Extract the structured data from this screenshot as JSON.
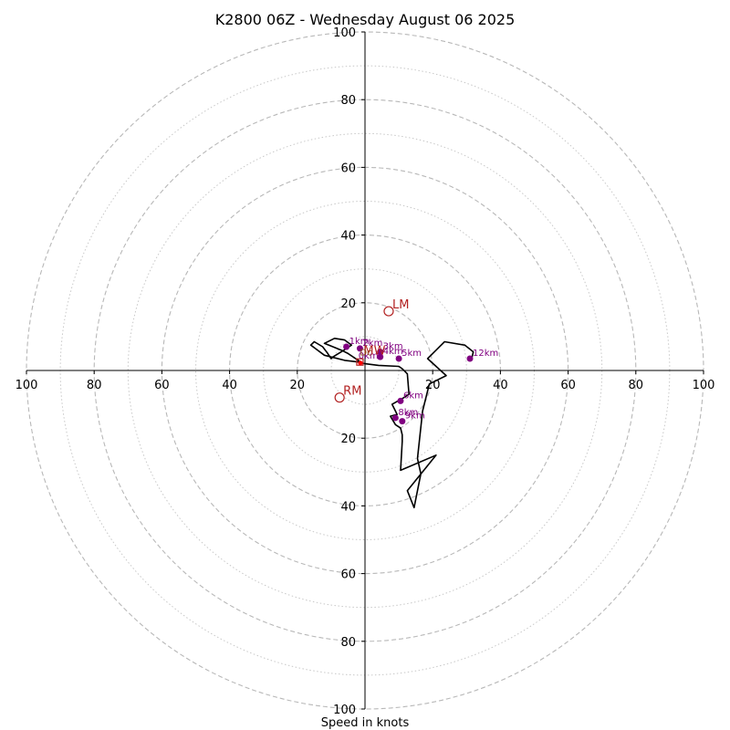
{
  "chart_data": {
    "type": "hodograph",
    "title": "K2800 06Z - Wednesday August 06 2025",
    "xlabel": "Speed in knots",
    "range": [
      -100,
      100
    ],
    "major_rings": [
      20,
      40,
      60,
      80,
      100
    ],
    "minor_rings": [
      10,
      30,
      50,
      70,
      90
    ],
    "x_ticks": [
      {
        "value": -100,
        "label": "100"
      },
      {
        "value": -80,
        "label": "80"
      },
      {
        "value": -60,
        "label": "60"
      },
      {
        "value": -40,
        "label": "40"
      },
      {
        "value": -20,
        "label": "20"
      },
      {
        "value": 20,
        "label": "20"
      },
      {
        "value": 40,
        "label": "40"
      },
      {
        "value": 60,
        "label": "60"
      },
      {
        "value": 80,
        "label": "80"
      },
      {
        "value": 100,
        "label": "100"
      }
    ],
    "y_ticks": [
      {
        "value": 100,
        "label": "100"
      },
      {
        "value": 80,
        "label": "80"
      },
      {
        "value": 60,
        "label": "60"
      },
      {
        "value": 40,
        "label": "40"
      },
      {
        "value": 20,
        "label": "20"
      },
      {
        "value": -20,
        "label": "20"
      },
      {
        "value": -40,
        "label": "40"
      },
      {
        "value": -60,
        "label": "60"
      },
      {
        "value": -80,
        "label": "80"
      },
      {
        "value": -100,
        "label": "100"
      }
    ],
    "trace": {
      "color": "#000000",
      "points": [
        [
          -0.5,
          2
        ],
        [
          -2,
          3
        ],
        [
          -5,
          5
        ],
        [
          -7,
          6
        ],
        [
          -12,
          8
        ],
        [
          -9,
          9.5
        ],
        [
          -6,
          9
        ],
        [
          -4,
          7.5
        ],
        [
          -7,
          5.5
        ],
        [
          -9.5,
          4
        ],
        [
          -10,
          3.5
        ],
        [
          -11,
          5
        ],
        [
          -12.5,
          7
        ],
        [
          -15,
          8.5
        ],
        [
          -16,
          7.5
        ],
        [
          -12,
          4.5
        ],
        [
          -6,
          3
        ],
        [
          -2,
          2.5
        ],
        [
          0,
          2
        ],
        [
          4,
          1.5
        ],
        [
          10,
          1.2
        ],
        [
          11,
          0.5
        ],
        [
          12.5,
          -1
        ],
        [
          13,
          -7
        ],
        [
          11.5,
          -8
        ],
        [
          8,
          -10
        ],
        [
          9,
          -12
        ],
        [
          9.5,
          -13
        ],
        [
          7.5,
          -13.5
        ],
        [
          9,
          -16
        ],
        [
          10.5,
          -17
        ],
        [
          11,
          -19
        ],
        [
          11,
          -21
        ],
        [
          10.5,
          -29.5
        ],
        [
          21,
          -25
        ],
        [
          12.5,
          -35.5
        ],
        [
          14.5,
          -40.5
        ],
        [
          16.5,
          -30.5
        ],
        [
          15.5,
          -26
        ],
        [
          17,
          -12
        ],
        [
          19,
          -4
        ],
        [
          24,
          -1.5
        ],
        [
          18.5,
          3.5
        ],
        [
          23.5,
          8.5
        ],
        [
          29.5,
          7.5
        ],
        [
          32,
          5.5
        ],
        [
          31.5,
          3.5
        ]
      ]
    },
    "height_markers": {
      "color": "#800080",
      "points": [
        {
          "u": -5.5,
          "v": 7,
          "label": "1km"
        },
        {
          "u": -1.5,
          "v": 6.5,
          "label": "2km"
        },
        {
          "u": 4.5,
          "v": 5.5,
          "label": "3km"
        },
        {
          "u": 4.5,
          "v": 4,
          "label": "4km"
        },
        {
          "u": 10,
          "v": 3.5,
          "label": "5km"
        },
        {
          "u": 10.5,
          "v": -9,
          "label": "6km"
        },
        {
          "u": 9,
          "v": -14,
          "label": "8km"
        },
        {
          "u": 11,
          "v": -15,
          "label": "9km"
        },
        {
          "u": 31,
          "v": 3.5,
          "label": "12km"
        }
      ]
    },
    "origin_label": {
      "u": -2.5,
      "v": 3,
      "label": "0km",
      "color": "#800080"
    },
    "storm_motions": [
      {
        "u": 7,
        "v": 17.5,
        "label": "LM",
        "color": "#b22222"
      },
      {
        "u": -7.5,
        "v": -8,
        "label": "RM",
        "color": "#b22222"
      }
    ],
    "mean_wind": {
      "u": -1.5,
      "v": 2.5,
      "label": "MW",
      "color": "#b22222"
    },
    "critical_angle_label": {
      "u": -1.5,
      "v": 4.5,
      "label": "Dc",
      "color": "#8b4513"
    }
  }
}
